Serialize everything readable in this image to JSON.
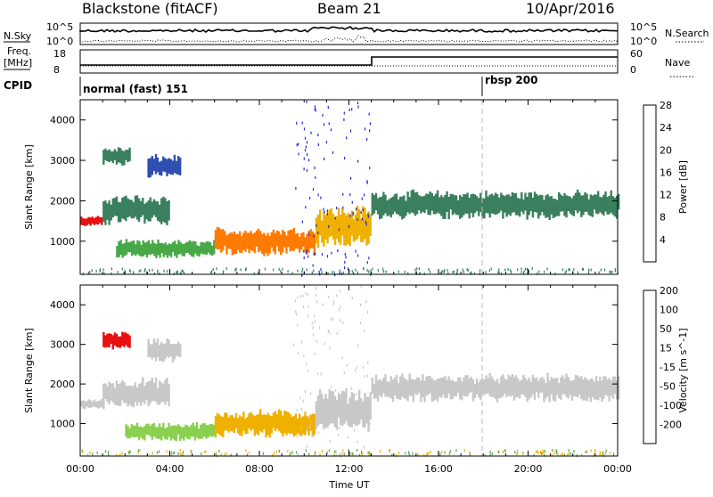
{
  "header": {
    "station": "Blackstone (fitACF)",
    "beam": "Beam 21",
    "date": "10/Apr/2016"
  },
  "panels": {
    "nsky_label": "N.Sky",
    "nsky_ticks": [
      "10^5",
      "10^0"
    ],
    "nsearch_label": "N.Search",
    "nsearch_ticks": [
      "10^5",
      "10^0"
    ],
    "freq_label_line1": "Freq.",
    "freq_label_line2": "[MHz]",
    "freq_ticks": [
      "18",
      "8"
    ],
    "nave_label": "Nave",
    "nave_ticks": [
      "60",
      "0"
    ],
    "cpid_label": "CPID",
    "cpid_segments": [
      {
        "label": "normal (fast) 151",
        "start_hour": 0
      },
      {
        "label": "rbsp 200",
        "start_hour": 18
      }
    ]
  },
  "chart_data": [
    {
      "type": "heatmap",
      "title": "",
      "parameter": "Power",
      "ylabel": "Slant Range [km]",
      "xlabel": "",
      "ylim": [
        180,
        4500
      ],
      "yticks": [
        1000,
        2000,
        3000,
        4000
      ],
      "colorbar_label": "Power [dB]",
      "colorbar_ticks": [
        4,
        8,
        12,
        16,
        20,
        24,
        28
      ],
      "colorbar_colors": [
        "#1b2bd6",
        "#2f4fb0",
        "#3a7f5e",
        "#48a848",
        "#f0b000",
        "#ff7a00",
        "#e81010"
      ],
      "regions": [
        {
          "t0": 0.0,
          "t1": 1.0,
          "r0": 1380,
          "r1": 1600,
          "level": 26
        },
        {
          "t0": 1.0,
          "t1": 4.0,
          "r0": 1450,
          "r1": 2100,
          "level": 10
        },
        {
          "t0": 1.0,
          "t1": 2.2,
          "r0": 2900,
          "r1": 3300,
          "level": 12
        },
        {
          "t0": 3.0,
          "t1": 4.5,
          "r0": 2600,
          "r1": 3100,
          "level": 6
        },
        {
          "t0": 1.6,
          "t1": 6.0,
          "r0": 600,
          "r1": 1000,
          "level": 14
        },
        {
          "t0": 6.0,
          "t1": 10.5,
          "r0": 700,
          "r1": 1300,
          "level": 22
        },
        {
          "t0": 10.5,
          "t1": 13.0,
          "r0": 900,
          "r1": 1800,
          "level": 20
        },
        {
          "t0": 13.0,
          "t1": 24.0,
          "r0": 1600,
          "r1": 2200,
          "level": 10
        }
      ]
    },
    {
      "type": "heatmap",
      "title": "",
      "parameter": "Velocity",
      "ylabel": "Slant Range [km]",
      "xlabel": "Time UT",
      "ylim": [
        180,
        4500
      ],
      "yticks": [
        1000,
        2000,
        3000,
        4000
      ],
      "xticks": [
        "00:00",
        "04:00",
        "08:00",
        "12:00",
        "16:00",
        "20:00",
        "00:00"
      ],
      "colorbar_label": "Velocity [m s^-1]",
      "colorbar_ticks": [
        200,
        100,
        50,
        15,
        -15,
        -50,
        -100,
        -200
      ],
      "colorbar_colors": [
        "#1b2bd6",
        "#2f4fb0",
        "#48a848",
        "#8ad050",
        "#c8c8c8",
        "#f0b000",
        "#ff7a00",
        "#e81010"
      ],
      "regions": [
        {
          "t0": 0.0,
          "t1": 1.0,
          "r0": 1380,
          "r1": 1600,
          "level": 0
        },
        {
          "t0": 1.0,
          "t1": 4.0,
          "r0": 1450,
          "r1": 2100,
          "level": 0
        },
        {
          "t0": 1.0,
          "t1": 2.2,
          "r0": 2900,
          "r1": 3300,
          "level": -150
        },
        {
          "t0": 3.0,
          "t1": 4.5,
          "r0": 2600,
          "r1": 3100,
          "level": 0
        },
        {
          "t0": 2.0,
          "t1": 6.0,
          "r0": 600,
          "r1": 1000,
          "level": 30
        },
        {
          "t0": 6.0,
          "t1": 10.5,
          "r0": 700,
          "r1": 1300,
          "level": -40
        },
        {
          "t0": 10.5,
          "t1": 13.0,
          "r0": 900,
          "r1": 1800,
          "level": 0
        },
        {
          "t0": 13.0,
          "t1": 24.0,
          "r0": 1600,
          "r1": 2200,
          "level": 0
        }
      ]
    }
  ]
}
